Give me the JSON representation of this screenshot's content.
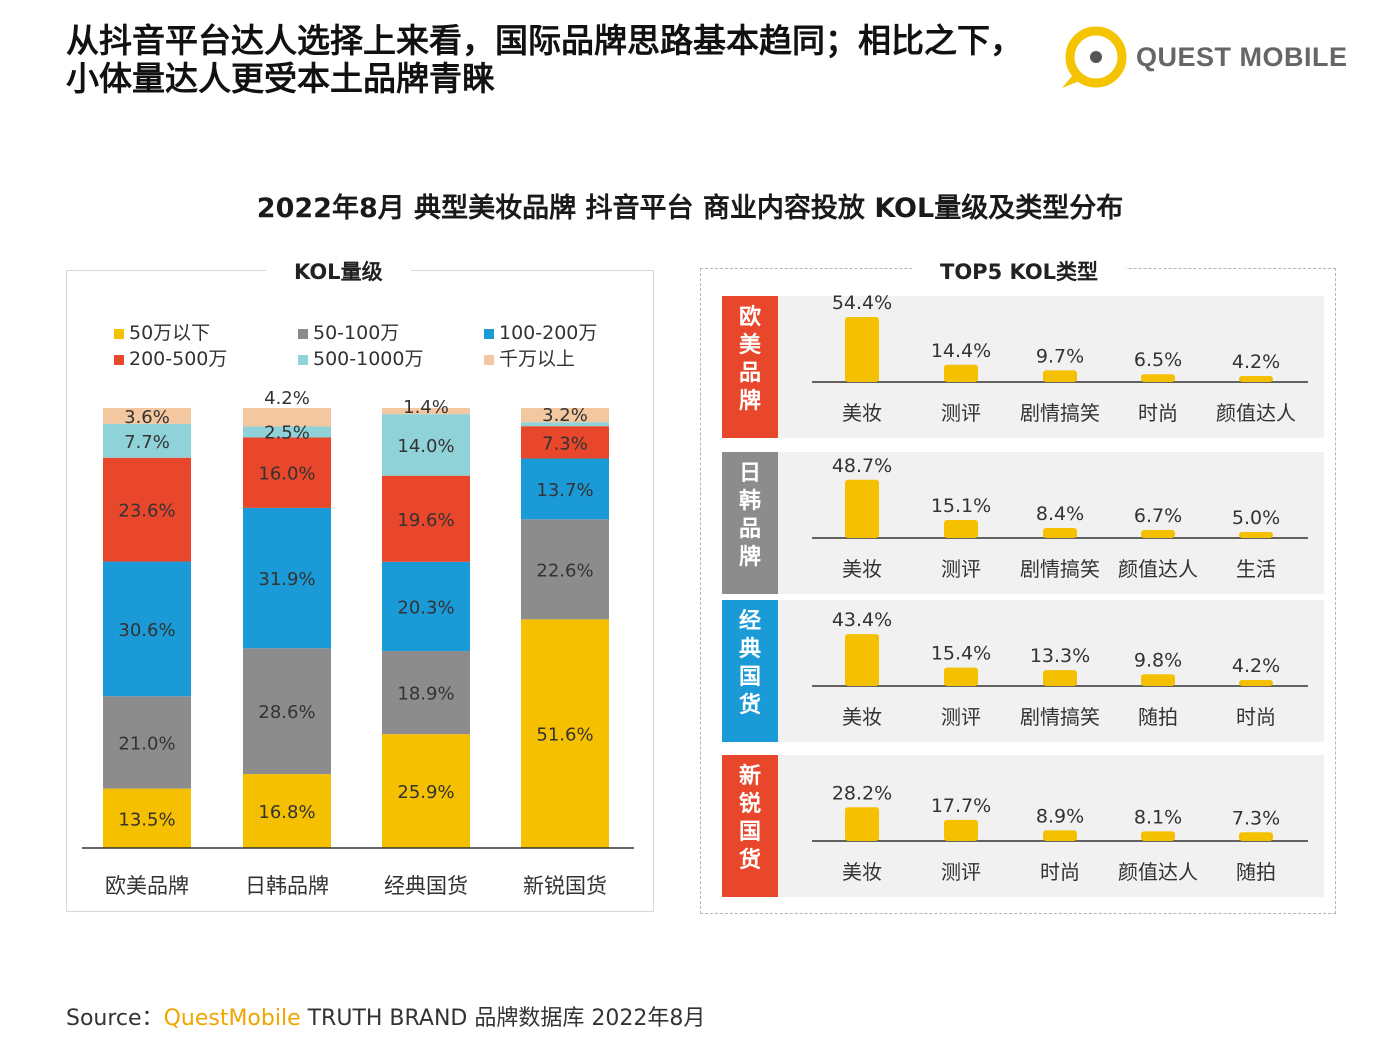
{
  "header": {
    "line1": "从抖音平台达人选择上来看，国际品牌思路基本趋同；相比之下，",
    "line2": "小体量达人更受本土品牌青睐"
  },
  "logo": {
    "text": "QUEST MOBILE",
    "color": "#f5c400"
  },
  "colors": {
    "s50": "#f5c000",
    "s50_100": "#8c8c8c",
    "s100_200": "#1a9ad6",
    "s200_500": "#e8472b",
    "s500_1000": "#8fd2d8",
    "s1000": "#f3c7a0",
    "bar": "#f5c000",
    "cat_red": "#e8472b",
    "cat_gray": "#8c8c8c",
    "cat_blue": "#1a9ad6"
  },
  "chart_title": "2022年8月 典型美妆品牌 抖音平台 商业内容投放 KOL量级及类型分布",
  "left_panel_label": "KOL量级",
  "right_panel_label": "TOP5 KOL类型",
  "legend": [
    "50万以下",
    "50-100万",
    "100-200万",
    "200-500万",
    "500-1000万",
    "千万以上"
  ],
  "chart_data": [
    {
      "type": "bar",
      "stacked": true,
      "title": "KOL量级",
      "categories": [
        "欧美品牌",
        "日韩品牌",
        "经典国货",
        "新锐国货"
      ],
      "series": [
        {
          "name": "50万以下",
          "values": [
            13.5,
            16.8,
            25.9,
            51.6
          ],
          "labels": [
            "13.5%",
            "16.8%",
            "25.9%",
            "51.6%"
          ]
        },
        {
          "name": "50-100万",
          "values": [
            21.0,
            28.6,
            18.9,
            22.6
          ],
          "labels": [
            "21.0%",
            "28.6%",
            "18.9%",
            "22.6%"
          ]
        },
        {
          "name": "100-200万",
          "values": [
            30.6,
            31.9,
            20.3,
            13.7
          ],
          "labels": [
            "30.6%",
            "31.9%",
            "20.3%",
            "13.7%"
          ]
        },
        {
          "name": "200-500万",
          "values": [
            23.6,
            16.0,
            19.6,
            7.3
          ],
          "labels": [
            "23.6%",
            "16.0%",
            "19.6%",
            "7.3%"
          ]
        },
        {
          "name": "500-1000万",
          "values": [
            7.7,
            2.5,
            14.0,
            0.9
          ],
          "labels": [
            "7.7%",
            "2.5%",
            "14.0%",
            ""
          ]
        },
        {
          "name": "千万以上",
          "values": [
            3.6,
            4.2,
            1.4,
            3.2
          ],
          "labels": [
            "3.6%",
            "4.2%",
            "1.4%",
            "3.2%"
          ]
        }
      ],
      "ylim": [
        0,
        100
      ]
    },
    {
      "type": "bar",
      "title": "TOP5 KOL类型",
      "groups": [
        {
          "name": "欧美品牌",
          "categories": [
            "美妆",
            "测评",
            "剧情搞笑",
            "时尚",
            "颜值达人"
          ],
          "values": [
            54.4,
            14.4,
            9.7,
            6.5,
            4.2
          ],
          "labels": [
            "54.4%",
            "14.4%",
            "9.7%",
            "6.5%",
            "4.2%"
          ]
        },
        {
          "name": "日韩品牌",
          "categories": [
            "美妆",
            "测评",
            "剧情搞笑",
            "颜值达人",
            "生活"
          ],
          "values": [
            48.7,
            15.1,
            8.4,
            6.7,
            5.0
          ],
          "labels": [
            "48.7%",
            "15.1%",
            "8.4%",
            "6.7%",
            "5.0%"
          ]
        },
        {
          "name": "经典国货",
          "categories": [
            "美妆",
            "测评",
            "剧情搞笑",
            "随拍",
            "时尚"
          ],
          "values": [
            43.4,
            15.4,
            13.3,
            9.8,
            4.2
          ],
          "labels": [
            "43.4%",
            "15.4%",
            "13.3%",
            "9.8%",
            "4.2%"
          ]
        },
        {
          "name": "新锐国货",
          "categories": [
            "美妆",
            "测评",
            "时尚",
            "颜值达人",
            "随拍"
          ],
          "values": [
            28.2,
            17.7,
            8.9,
            8.1,
            7.3
          ],
          "labels": [
            "28.2%",
            "17.7%",
            "8.9%",
            "8.1%",
            "7.3%"
          ]
        }
      ]
    }
  ],
  "source": {
    "prefix": "Source：",
    "brand": "QuestMobile",
    "rest": " TRUTH BRAND 品牌数据库 2022年8月"
  }
}
